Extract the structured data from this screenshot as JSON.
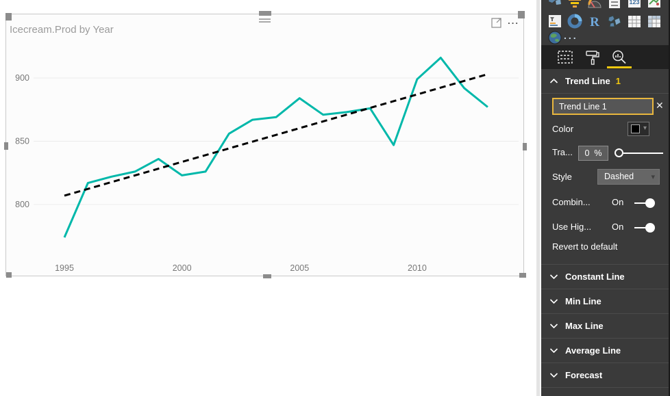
{
  "visual": {
    "title": "Icecream.Prod by Year",
    "header_icons": {
      "focus_mode": "focus-mode-icon",
      "more_options": "..."
    }
  },
  "chart_data": {
    "type": "line",
    "title": "Icecream.Prod by Year",
    "x_label": "Year",
    "y_label": "Icecream.Prod",
    "x": [
      1995,
      1996,
      1997,
      1998,
      1999,
      2000,
      2001,
      2002,
      2003,
      2004,
      2005,
      2006,
      2007,
      2008,
      2009,
      2010,
      2011,
      2012,
      2013
    ],
    "series": [
      {
        "name": "Icecream.Prod",
        "color": "#01B8AA",
        "values": [
          774,
          817,
          822,
          826,
          836,
          823,
          826,
          856,
          867,
          869,
          884,
          871,
          873,
          876,
          847,
          899,
          916,
          892,
          877
        ]
      }
    ],
    "trend_line": {
      "style": "dashed",
      "color": "#000000",
      "start": {
        "x": 1995,
        "y": 807
      },
      "end": {
        "x": 2013,
        "y": 903
      }
    },
    "x_ticks": [
      1995,
      2000,
      2005,
      2010
    ],
    "y_ticks": [
      800,
      850,
      900
    ],
    "ylim": [
      762,
      930
    ],
    "grid": "horizontal",
    "legend": "none"
  },
  "panel": {
    "visual_icons_row1": [
      "shape-map",
      "funnel",
      "gauge",
      "multi-row-card",
      "card",
      "kpi"
    ],
    "visual_icons_row2": [
      "slicer",
      "donut-chart",
      "r-script",
      "filled-map",
      "table",
      "matrix"
    ],
    "visual_icons_row3": [
      "arcgis-map"
    ],
    "more_visuals": "...",
    "tabs": [
      {
        "name": "fields",
        "selected": false
      },
      {
        "name": "format",
        "selected": false
      },
      {
        "name": "analytics",
        "selected": true
      }
    ],
    "trend_line": {
      "header": "Trend Line",
      "count": "1",
      "name_value": "Trend Line 1",
      "close": "✕",
      "color_label": "Color",
      "transparency_label": "Tra...",
      "transparency_value": "0",
      "percent_sign": "%",
      "style_label": "Style",
      "style_value": "Dashed",
      "combine_label": "Combin...",
      "combine_state": "On",
      "use_highlight_label": "Use Hig...",
      "use_highlight_state": "On",
      "revert_label": "Revert to default"
    },
    "sections": [
      {
        "label": "Constant Line"
      },
      {
        "label": "Min Line"
      },
      {
        "label": "Max Line"
      },
      {
        "label": "Average Line"
      },
      {
        "label": "Forecast"
      }
    ],
    "accent_color": "#F2C80F"
  }
}
